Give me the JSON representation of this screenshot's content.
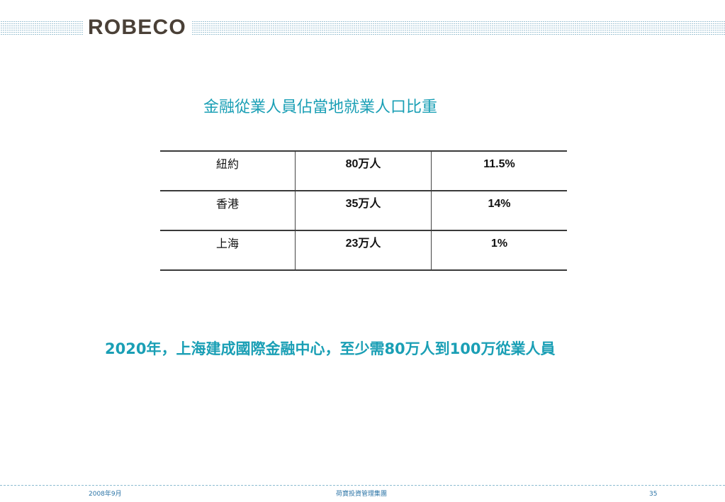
{
  "header": {
    "logo_text": "ROBECO"
  },
  "title": "金融從業人員佔當地就業人口比重",
  "table": {
    "rows": [
      {
        "city": "紐約",
        "employees": "80万人",
        "share": "11.5%"
      },
      {
        "city": "香港",
        "employees": "35万人",
        "share": "14%"
      },
      {
        "city": "上海",
        "employees": "23万人",
        "share": "1%"
      }
    ]
  },
  "statement": "2020年，上海建成國際金融中心，至少需80万人到100万從業人員",
  "footer": {
    "date": "2008年9月",
    "company": "荷寶投資管理集團",
    "page_number": "35"
  },
  "colors": {
    "accent": "#1a9fb5",
    "logo": "#4a4037",
    "stripe": "#9ec3d4",
    "footer_text": "#2a73a6"
  }
}
